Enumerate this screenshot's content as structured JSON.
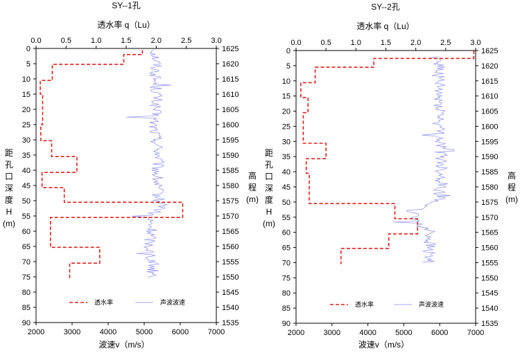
{
  "chart_data": [
    {
      "type": "line",
      "title": "SY--1孔",
      "top_axis": {
        "label": "透水率 q（Lu）",
        "range": [
          0,
          3
        ],
        "ticks": [
          "0.0",
          "0.5",
          "1.0",
          "1.5",
          "2.0",
          "2.5",
          "3.0"
        ]
      },
      "bottom_axis": {
        "label": "波速v（m/s）",
        "range": [
          2000,
          7000
        ],
        "ticks": [
          "2000",
          "3000",
          "4000",
          "5000",
          "6000",
          "7000"
        ]
      },
      "left_axis": {
        "label_chars": [
          "距",
          "孔",
          "口",
          "深",
          "度",
          "H",
          "(m)"
        ],
        "range": [
          0,
          90
        ],
        "ticks": [
          "0",
          "5",
          "10",
          "15",
          "20",
          "25",
          "30",
          "35",
          "40",
          "45",
          "50",
          "55",
          "60",
          "65",
          "70",
          "75",
          "80",
          "85",
          "90"
        ]
      },
      "right_axis": {
        "label_chars": [
          "高",
          "程",
          "(m)"
        ],
        "range": [
          1625,
          1535
        ],
        "ticks": [
          "1625",
          "1620",
          "1615",
          "1610",
          "1605",
          "1600",
          "1595",
          "1590",
          "1585",
          "1580",
          "1575",
          "1570",
          "1565",
          "1560",
          "1555",
          "1550",
          "1545",
          "1540",
          "1535"
        ]
      },
      "legend": [
        "透水率",
        "声波波速"
      ],
      "series": [
        {
          "name": "透水率",
          "unit": "Lu",
          "color": "#e0201b",
          "step_segments": [
            {
              "from": 0.5,
              "to": 2.0,
              "q": 1.77
            },
            {
              "from": 2.0,
              "to": 5.2,
              "q": 1.46
            },
            {
              "from": 5.2,
              "to": 10.5,
              "q": 0.27
            },
            {
              "from": 10.5,
              "to": 15.0,
              "q": 0.07
            },
            {
              "from": 15.0,
              "to": 25.0,
              "q": 0.11
            },
            {
              "from": 25.0,
              "to": 30.3,
              "q": 0.08
            },
            {
              "from": 30.3,
              "to": 35.5,
              "q": 0.26
            },
            {
              "from": 35.5,
              "to": 40.7,
              "q": 0.68
            },
            {
              "from": 40.7,
              "to": 45.7,
              "q": 0.1
            },
            {
              "from": 45.7,
              "to": 50.5,
              "q": 0.47
            },
            {
              "from": 50.5,
              "to": 55.5,
              "q": 2.44
            },
            {
              "from": 55.5,
              "to": 65.3,
              "q": 0.24
            },
            {
              "from": 65.3,
              "to": 70.5,
              "q": 1.06
            },
            {
              "from": 70.5,
              "to": 75.5,
              "q": 0.56
            }
          ]
        },
        {
          "name": "声波波速",
          "unit": "m/s",
          "color": "#8a8cf0",
          "depth_range": [
            0.5,
            75.5
          ],
          "profile": [
            {
              "depth": 0.5,
              "v": 5300
            },
            {
              "depth": 5,
              "v": 5350
            },
            {
              "depth": 10,
              "v": 5300
            },
            {
              "depth": 15,
              "v": 5350
            },
            {
              "depth": 20,
              "v": 5300
            },
            {
              "depth": 25,
              "v": 5250
            },
            {
              "depth": 30,
              "v": 5350
            },
            {
              "depth": 35,
              "v": 5400
            },
            {
              "depth": 40,
              "v": 5350
            },
            {
              "depth": 45,
              "v": 5350
            },
            {
              "depth": 50,
              "v": 5400
            },
            {
              "depth": 52,
              "v": 5550
            },
            {
              "depth": 55,
              "v": 5100
            },
            {
              "depth": 60,
              "v": 5200
            },
            {
              "depth": 65,
              "v": 5150
            },
            {
              "depth": 70,
              "v": 5250
            },
            {
              "depth": 75.5,
              "v": 5250
            }
          ],
          "spread": 180,
          "spikes": [
            {
              "depth": 22.6,
              "v": 4500
            },
            {
              "depth": 12.0,
              "v": 5750
            },
            {
              "depth": 67.5,
              "v": 4780
            },
            {
              "depth": 55.2,
              "v": 4650
            }
          ]
        }
      ]
    },
    {
      "type": "line",
      "title": "SY--2孔",
      "top_axis": {
        "label": "透水率 q（Lu）",
        "range": [
          0,
          3
        ],
        "ticks": [
          "0.0",
          "0.5",
          "1.0",
          "1.5",
          "2.0",
          "2.5",
          "3.0"
        ]
      },
      "bottom_axis": {
        "label": "波速v（m/s）",
        "range": [
          2000,
          7000
        ],
        "ticks": [
          "2000",
          "3000",
          "4000",
          "5000",
          "6000",
          "7000"
        ]
      },
      "left_axis": {
        "label_chars": [
          "距",
          "孔",
          "口",
          "深",
          "度",
          "H",
          "(m)"
        ],
        "range": [
          0,
          90
        ],
        "ticks": [
          "0",
          "5",
          "10",
          "15",
          "20",
          "25",
          "30",
          "35",
          "40",
          "45",
          "50",
          "55",
          "60",
          "65",
          "70",
          "75",
          "80",
          "85",
          "90"
        ]
      },
      "right_axis": {
        "label_chars": [
          "高",
          "程",
          "(m)"
        ],
        "range": [
          1625,
          1535
        ],
        "ticks": [
          "1625",
          "1620",
          "1615",
          "1610",
          "1605",
          "1600",
          "1595",
          "1590",
          "1585",
          "1580",
          "1575",
          "1570",
          "1565",
          "1560",
          "1555",
          "1550",
          "1545",
          "1540",
          "1535"
        ]
      },
      "legend": [
        "透水率",
        "声波波速"
      ],
      "series": [
        {
          "name": "透水率",
          "unit": "Lu",
          "color": "#e0201b",
          "step_segments": [
            {
              "from": 0.0,
              "to": 2.6,
              "q": 2.97
            },
            {
              "from": 2.6,
              "to": 5.5,
              "q": 1.3
            },
            {
              "from": 5.5,
              "to": 10.6,
              "q": 0.32
            },
            {
              "from": 10.6,
              "to": 15.5,
              "q": 0.08
            },
            {
              "from": 15.5,
              "to": 20.5,
              "q": 0.2
            },
            {
              "from": 20.5,
              "to": 30.6,
              "q": 0.12
            },
            {
              "from": 30.6,
              "to": 35.7,
              "q": 0.5
            },
            {
              "from": 35.7,
              "to": 40.5,
              "q": 0.17
            },
            {
              "from": 40.5,
              "to": 50.5,
              "q": 0.22
            },
            {
              "from": 50.5,
              "to": 55.5,
              "q": 1.65
            },
            {
              "from": 55.5,
              "to": 60.5,
              "q": 2.03
            },
            {
              "from": 60.5,
              "to": 65.3,
              "q": 1.55
            },
            {
              "from": 65.3,
              "to": 70.5,
              "q": 0.75
            }
          ]
        },
        {
          "name": "声波波速",
          "unit": "m/s",
          "color": "#8a8cf0",
          "depth_range": [
            2.0,
            70.0
          ],
          "profile": [
            {
              "depth": 2,
              "v": 5950
            },
            {
              "depth": 5,
              "v": 6000
            },
            {
              "depth": 10,
              "v": 5950
            },
            {
              "depth": 15,
              "v": 5950
            },
            {
              "depth": 20,
              "v": 6050
            },
            {
              "depth": 25,
              "v": 5950
            },
            {
              "depth": 30,
              "v": 6000
            },
            {
              "depth": 35,
              "v": 6050
            },
            {
              "depth": 40,
              "v": 6050
            },
            {
              "depth": 45,
              "v": 6050
            },
            {
              "depth": 50,
              "v": 5950
            },
            {
              "depth": 53,
              "v": 5200
            },
            {
              "depth": 56,
              "v": 5350
            },
            {
              "depth": 60,
              "v": 5750
            },
            {
              "depth": 65,
              "v": 5700
            },
            {
              "depth": 70,
              "v": 5700
            }
          ],
          "spread": 200,
          "spikes": [
            {
              "depth": 56.5,
              "v": 4700
            },
            {
              "depth": 28.0,
              "v": 5500
            },
            {
              "depth": 48.0,
              "v": 6300
            },
            {
              "depth": 33.0,
              "v": 6400
            }
          ]
        }
      ]
    }
  ]
}
